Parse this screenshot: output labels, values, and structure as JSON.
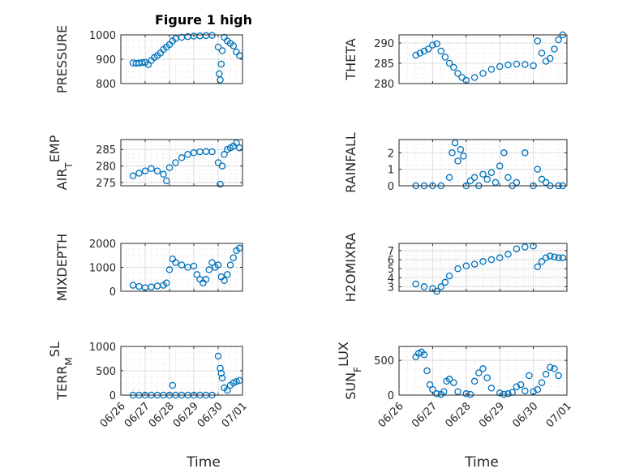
{
  "figure": {
    "title": "Figure 1 high",
    "xlabel": "Time",
    "marker_color": "#0072BD"
  },
  "chart_data": [
    {
      "type": "scatter",
      "ylabel": "PRESSURE",
      "yticks": [
        "800",
        "900",
        "1000"
      ],
      "ylim": [
        800,
        1000
      ],
      "x": [
        "06/26 12:00",
        "06/26 15:00",
        "06/26 18:00",
        "06/26 21:00",
        "06/27 00:00",
        "06/27 03:00",
        "06/27 06:00",
        "06/27 09:00",
        "06/27 12:00",
        "06/27 15:00",
        "06/27 18:00",
        "06/27 21:00",
        "06/28 00:00",
        "06/28 03:00",
        "06/28 06:00",
        "06/28 12:00",
        "06/28 18:00",
        "06/29 00:00",
        "06/29 06:00",
        "06/29 12:00",
        "06/29 18:00",
        "06/30 00:00",
        "06/30 01:00",
        "06/30 02:00",
        "06/30 03:00",
        "06/30 04:00",
        "06/30 06:00",
        "06/30 09:00",
        "06/30 12:00",
        "06/30 15:00",
        "06/30 18:00",
        "06/30 21:00"
      ],
      "y": [
        885,
        883,
        884,
        886,
        887,
        878,
        895,
        907,
        915,
        925,
        940,
        950,
        960,
        975,
        985,
        990,
        993,
        995,
        996,
        997,
        998,
        950,
        840,
        815,
        880,
        935,
        990,
        975,
        965,
        955,
        930,
        915
      ]
    },
    {
      "type": "scatter",
      "ylabel": "THETA",
      "yticks": [
        "280",
        "285",
        "290"
      ],
      "ylim": [
        280,
        292
      ],
      "x": [
        "06/26 12:00",
        "06/26 15:00",
        "06/26 18:00",
        "06/26 21:00",
        "06/27 00:00",
        "06/27 03:00",
        "06/27 06:00",
        "06/27 09:00",
        "06/27 12:00",
        "06/27 15:00",
        "06/27 18:00",
        "06/27 21:00",
        "06/28 00:00",
        "06/28 06:00",
        "06/28 12:00",
        "06/28 18:00",
        "06/29 00:00",
        "06/29 06:00",
        "06/29 12:00",
        "06/29 18:00",
        "06/30 00:00",
        "06/30 03:00",
        "06/30 06:00",
        "06/30 09:00",
        "06/30 12:00",
        "06/30 15:00",
        "06/30 18:00",
        "06/30 21:00"
      ],
      "y": [
        287,
        287.5,
        288,
        288.5,
        289.5,
        289.8,
        288,
        286.5,
        285,
        284,
        282.5,
        281.5,
        280.8,
        281.5,
        282.5,
        283.5,
        284.2,
        284.6,
        284.8,
        284.7,
        284.4,
        290.5,
        287.5,
        285.5,
        286.2,
        288.5,
        290.8,
        292
      ]
    },
    {
      "type": "scatter",
      "ylabel": "AIR_TEMP",
      "ylabel_parts": [
        "AIR",
        "T",
        "EMP"
      ],
      "yticks": [
        "275",
        "280",
        "285"
      ],
      "ylim": [
        274,
        288
      ],
      "x": [
        "06/26 12:00",
        "06/26 18:00",
        "06/27 00:00",
        "06/27 06:00",
        "06/27 12:00",
        "06/27 18:00",
        "06/27 21:00",
        "06/28 00:00",
        "06/28 06:00",
        "06/28 12:00",
        "06/28 18:00",
        "06/29 00:00",
        "06/29 06:00",
        "06/29 12:00",
        "06/29 18:00",
        "06/30 00:00",
        "06/30 02:00",
        "06/30 04:00",
        "06/30 06:00",
        "06/30 09:00",
        "06/30 12:00",
        "06/30 15:00",
        "06/30 18:00",
        "06/30 21:00"
      ],
      "y": [
        277,
        277.8,
        278.5,
        279.2,
        278.5,
        277.5,
        275.5,
        279.5,
        281,
        282.5,
        283.5,
        284,
        284.3,
        284.4,
        284.3,
        281,
        274.5,
        280,
        283.5,
        285,
        285.5,
        286,
        287,
        285.5
      ]
    },
    {
      "type": "scatter",
      "ylabel": "RAINFALL",
      "yticks": [
        "0",
        "1",
        "2"
      ],
      "ylim": [
        0,
        2.8
      ],
      "x": [
        "06/26 12:00",
        "06/26 18:00",
        "06/27 00:00",
        "06/27 06:00",
        "06/27 12:00",
        "06/27 14:00",
        "06/27 16:00",
        "06/27 18:00",
        "06/27 20:00",
        "06/27 22:00",
        "06/28 00:00",
        "06/28 03:00",
        "06/28 06:00",
        "06/28 09:00",
        "06/28 12:00",
        "06/28 15:00",
        "06/28 18:00",
        "06/28 21:00",
        "06/29 00:00",
        "06/29 03:00",
        "06/29 06:00",
        "06/29 09:00",
        "06/29 12:00",
        "06/29 18:00",
        "06/30 00:00",
        "06/30 03:00",
        "06/30 06:00",
        "06/30 09:00",
        "06/30 12:00",
        "06/30 18:00",
        "06/30 21:00"
      ],
      "y": [
        0,
        0,
        0,
        0,
        0.5,
        2,
        2.6,
        1.5,
        2.2,
        1.8,
        0,
        0.3,
        0.5,
        0,
        0.7,
        0.4,
        0.8,
        0.2,
        1.2,
        2,
        0.5,
        0,
        0.2,
        2,
        0,
        1,
        0.4,
        0.2,
        0,
        0,
        0
      ]
    },
    {
      "type": "scatter",
      "ylabel": "MIXDEPTH",
      "yticks": [
        "0",
        "1000",
        "2000"
      ],
      "ylim": [
        0,
        2000
      ],
      "x": [
        "06/26 12:00",
        "06/26 18:00",
        "06/27 00:00",
        "06/27 06:00",
        "06/27 12:00",
        "06/27 18:00",
        "06/27 21:00",
        "06/28 00:00",
        "06/28 03:00",
        "06/28 06:00",
        "06/28 12:00",
        "06/28 18:00",
        "06/29 00:00",
        "06/29 03:00",
        "06/29 06:00",
        "06/29 09:00",
        "06/29 12:00",
        "06/29 15:00",
        "06/29 18:00",
        "06/29 21:00",
        "06/30 00:00",
        "06/30 03:00",
        "06/30 06:00",
        "06/30 09:00",
        "06/30 12:00",
        "06/30 15:00",
        "06/30 18:00",
        "06/30 21:00"
      ],
      "y": [
        250,
        200,
        150,
        180,
        220,
        250,
        350,
        900,
        1350,
        1200,
        1100,
        1000,
        1050,
        700,
        500,
        350,
        500,
        900,
        1200,
        1000,
        1100,
        600,
        450,
        700,
        1100,
        1400,
        1700,
        1800
      ]
    },
    {
      "type": "scatter",
      "ylabel": "H2OMIXRA",
      "yticks": [
        "3",
        "4",
        "5",
        "6",
        "7"
      ],
      "ylim": [
        2.5,
        7.8
      ],
      "x": [
        "06/26 12:00",
        "06/26 18:00",
        "06/27 00:00",
        "06/27 03:00",
        "06/27 06:00",
        "06/27 09:00",
        "06/27 12:00",
        "06/27 18:00",
        "06/28 00:00",
        "06/28 06:00",
        "06/28 12:00",
        "06/28 18:00",
        "06/29 00:00",
        "06/29 06:00",
        "06/29 12:00",
        "06/29 18:00",
        "06/30 00:00",
        "06/30 03:00",
        "06/30 06:00",
        "06/30 09:00",
        "06/30 12:00",
        "06/30 15:00",
        "06/30 18:00",
        "06/30 21:00"
      ],
      "y": [
        3.3,
        3,
        2.8,
        2.5,
        3,
        3.5,
        4.2,
        5,
        5.3,
        5.5,
        5.8,
        6,
        6.2,
        6.6,
        7.2,
        7.4,
        7.5,
        5.2,
        5.8,
        6.2,
        6.4,
        6.3,
        6.2,
        6.2
      ]
    },
    {
      "type": "scatter",
      "ylabel": "TERR_MSL",
      "ylabel_parts": [
        "TERR",
        "M",
        "SL"
      ],
      "yticks": [
        "0",
        "500",
        "1000"
      ],
      "ylim": [
        0,
        1000
      ],
      "xticks": [
        "06/26",
        "06/27",
        "06/28",
        "06/29",
        "06/30",
        "07/01"
      ],
      "x": [
        "06/26 12:00",
        "06/26 18:00",
        "06/27 00:00",
        "06/27 06:00",
        "06/27 12:00",
        "06/27 18:00",
        "06/28 00:00",
        "06/28 03:00",
        "06/28 06:00",
        "06/28 12:00",
        "06/28 18:00",
        "06/29 00:00",
        "06/29 06:00",
        "06/29 12:00",
        "06/29 18:00",
        "06/30 00:00",
        "06/30 02:00",
        "06/30 03:00",
        "06/30 04:00",
        "06/30 06:00",
        "06/30 09:00",
        "06/30 12:00",
        "06/30 15:00",
        "06/30 18:00",
        "06/30 21:00"
      ],
      "y": [
        0,
        0,
        0,
        0,
        0,
        0,
        0,
        200,
        0,
        0,
        0,
        0,
        0,
        0,
        0,
        800,
        550,
        450,
        350,
        150,
        100,
        200,
        250,
        280,
        300
      ]
    },
    {
      "type": "scatter",
      "ylabel": "SUN_FLUX",
      "ylabel_parts": [
        "SUN",
        "F",
        "LUX"
      ],
      "yticks": [
        "0",
        "500"
      ],
      "ylim": [
        0,
        700
      ],
      "xticks": [
        "06/26",
        "06/27",
        "06/28",
        "06/29",
        "06/30",
        "07/01"
      ],
      "x": [
        "06/26 12:00",
        "06/26 14:00",
        "06/26 16:00",
        "06/26 18:00",
        "06/26 20:00",
        "06/26 22:00",
        "06/27 00:00",
        "06/27 03:00",
        "06/27 06:00",
        "06/27 08:00",
        "06/27 10:00",
        "06/27 12:00",
        "06/27 15:00",
        "06/27 18:00",
        "06/28 00:00",
        "06/28 03:00",
        "06/28 06:00",
        "06/28 09:00",
        "06/28 12:00",
        "06/28 15:00",
        "06/28 18:00",
        "06/29 00:00",
        "06/29 03:00",
        "06/29 06:00",
        "06/29 09:00",
        "06/29 12:00",
        "06/29 15:00",
        "06/29 18:00",
        "06/29 21:00",
        "06/30 00:00",
        "06/30 03:00",
        "06/30 06:00",
        "06/30 09:00",
        "06/30 12:00",
        "06/30 15:00",
        "06/30 18:00"
      ],
      "y": [
        550,
        600,
        620,
        580,
        350,
        150,
        80,
        20,
        10,
        50,
        200,
        230,
        180,
        50,
        20,
        10,
        200,
        320,
        380,
        250,
        100,
        30,
        10,
        20,
        40,
        120,
        150,
        60,
        280,
        50,
        80,
        180,
        300,
        400,
        380,
        280
      ]
    }
  ]
}
